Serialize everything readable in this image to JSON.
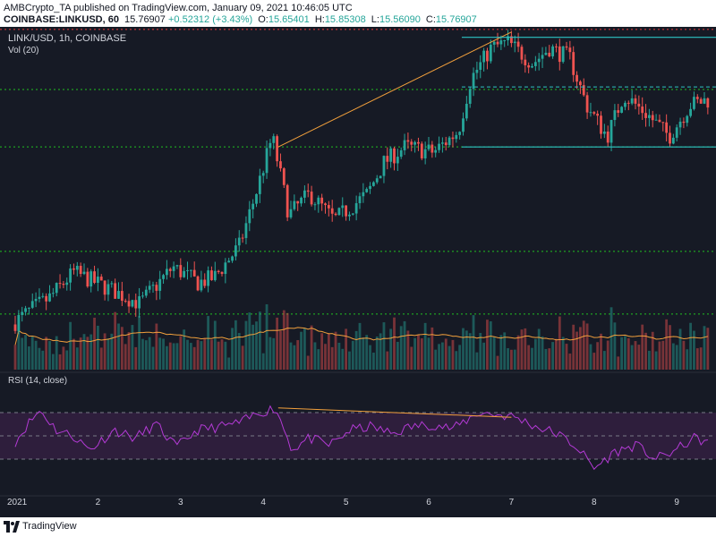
{
  "header": {
    "publish_line": "AMBCrypto_TA published on TradingView.com, January 09, 2021 10:46:05 UTC",
    "symbol": "COINBASE:LINKUSD, 60",
    "last": "15.76907",
    "change": "+0.52312 (+3.43%)",
    "o_label": "O:",
    "o_value": "15.65401",
    "h_label": "H:",
    "h_value": "15.85308",
    "l_label": "L:",
    "l_value": "15.56090",
    "c_label": "C:",
    "c_value": "15.76907"
  },
  "panes": {
    "main_label": "LINK/USD, 1h, COINBASE",
    "volume_label": "Vol (20)",
    "rsi_label": "RSI (14, close)"
  },
  "footer": {
    "brand": "TradingView",
    "logo_icon": "tradingview-logo-icon"
  },
  "colors": {
    "background": "#161a25",
    "up": "#26a69a",
    "down": "#ef5350",
    "support_lines": "#21c021",
    "resistance_line": "#e33b3b",
    "trendline": "#f2a03c",
    "channel": "#2ec4c4",
    "rsi_line": "#b43ad6",
    "rsi_band": "#2e1e3c",
    "volume_ma": "#f2a03c"
  },
  "chart_data": {
    "type": "candlestick",
    "symbol": "LINK/USD",
    "interval": "1h",
    "x_tick_labels": [
      "2021",
      "2",
      "3",
      "4",
      "5",
      "6",
      "7",
      "8",
      "9"
    ],
    "price_range": [
      10.6,
      17.2
    ],
    "horizontal_levels": {
      "support": [
        16.0,
        14.9,
        12.9,
        11.7
      ],
      "resistance": [
        17.15
      ]
    },
    "trendlines": [
      {
        "name": "rising trendline",
        "from": {
          "day": 4.18,
          "price": 14.9
        },
        "to": {
          "day": 7.0,
          "price": 17.1
        }
      }
    ],
    "channel": {
      "from_day": 6.4,
      "to_day": 9.4,
      "top": 17.0,
      "bottom": 14.9,
      "mid": 16.05
    },
    "price_anchors": [
      [
        1.0,
        11.5
      ],
      [
        1.25,
        11.8
      ],
      [
        1.45,
        12.0
      ],
      [
        1.75,
        12.5
      ],
      [
        2.15,
        12.2
      ],
      [
        2.55,
        11.9
      ],
      [
        2.95,
        12.6
      ],
      [
        3.25,
        12.3
      ],
      [
        3.45,
        12.4
      ],
      [
        3.75,
        13.0
      ],
      [
        3.95,
        14.0
      ],
      [
        4.15,
        15.1
      ],
      [
        4.35,
        13.6
      ],
      [
        4.6,
        14.0
      ],
      [
        4.9,
        13.5
      ],
      [
        5.3,
        14.0
      ],
      [
        5.5,
        14.6
      ],
      [
        5.75,
        14.9
      ],
      [
        6.1,
        14.8
      ],
      [
        6.4,
        15.2
      ],
      [
        6.55,
        16.2
      ],
      [
        6.8,
        16.8
      ],
      [
        7.0,
        16.9
      ],
      [
        7.3,
        16.5
      ],
      [
        7.5,
        16.8
      ],
      [
        7.75,
        16.6
      ],
      [
        7.95,
        15.7
      ],
      [
        8.2,
        15.1
      ],
      [
        8.4,
        15.9
      ],
      [
        8.7,
        15.5
      ],
      [
        8.95,
        15.1
      ],
      [
        9.2,
        15.7
      ],
      [
        9.4,
        15.8
      ]
    ],
    "rsi": {
      "range": [
        0,
        100
      ],
      "levels": [
        70,
        50,
        30
      ],
      "anchors": [
        [
          1.0,
          45
        ],
        [
          1.15,
          60
        ],
        [
          1.3,
          72
        ],
        [
          1.5,
          55
        ],
        [
          1.7,
          50
        ],
        [
          1.9,
          38
        ],
        [
          2.2,
          55
        ],
        [
          2.45,
          48
        ],
        [
          2.7,
          60
        ],
        [
          2.95,
          40
        ],
        [
          3.2,
          55
        ],
        [
          3.5,
          58
        ],
        [
          3.75,
          62
        ],
        [
          3.95,
          70
        ],
        [
          4.15,
          74
        ],
        [
          4.35,
          38
        ],
        [
          4.55,
          48
        ],
        [
          4.8,
          42
        ],
        [
          5.05,
          55
        ],
        [
          5.3,
          58
        ],
        [
          5.55,
          52
        ],
        [
          5.8,
          58
        ],
        [
          6.05,
          60
        ],
        [
          6.3,
          56
        ],
        [
          6.6,
          70
        ],
        [
          6.85,
          68
        ],
        [
          7.05,
          66
        ],
        [
          7.3,
          58
        ],
        [
          7.55,
          52
        ],
        [
          7.8,
          40
        ],
        [
          8.0,
          22
        ],
        [
          8.25,
          36
        ],
        [
          8.5,
          42
        ],
        [
          8.75,
          30
        ],
        [
          9.0,
          38
        ],
        [
          9.2,
          48
        ],
        [
          9.4,
          44
        ]
      ]
    },
    "rsi_divergence": {
      "from": {
        "day": 4.18,
        "rsi": 74
      },
      "to": {
        "day": 7.0,
        "rsi": 66
      }
    }
  }
}
